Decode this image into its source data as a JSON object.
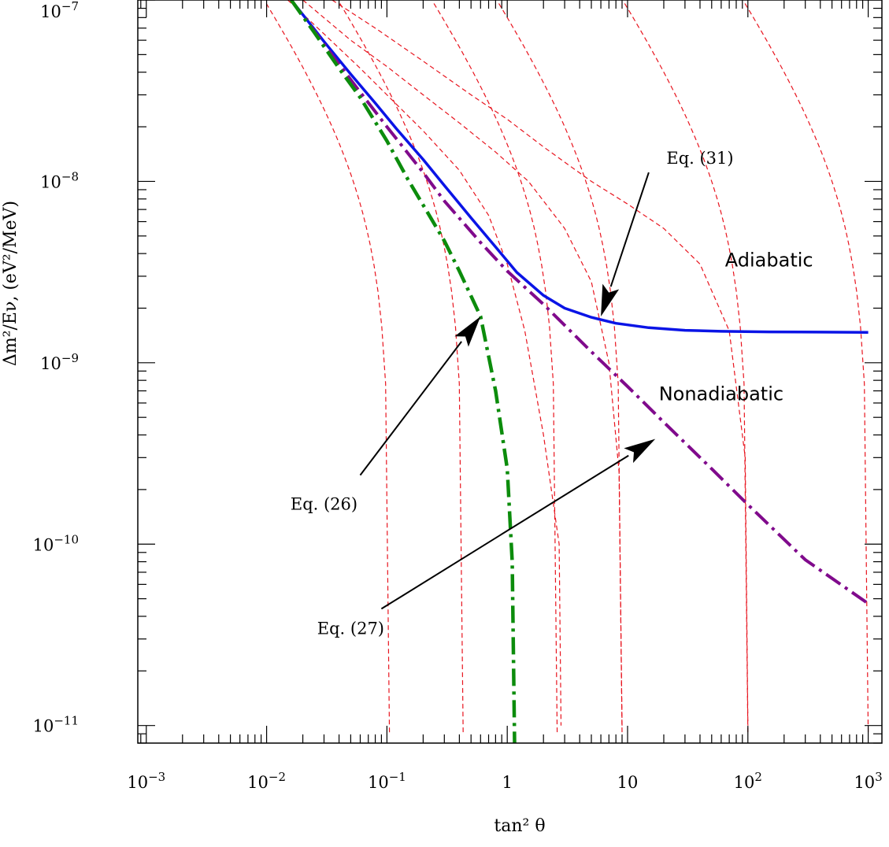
{
  "chart_data": {
    "type": "line",
    "xlabel": "tan² θ",
    "ylabel": "Δm²/Eν, (eV²/MeV)",
    "x_scale": "log",
    "y_scale": "log",
    "xlim": [
      0.00085,
      1300
    ],
    "ylim": [
      8e-12,
      1e-07
    ],
    "x_ticks": [
      {
        "value": 0.001,
        "base": "10",
        "exp": "−3"
      },
      {
        "value": 0.01,
        "base": "10",
        "exp": "−2"
      },
      {
        "value": 0.1,
        "base": "10",
        "exp": "−1"
      },
      {
        "value": 1,
        "base": "1",
        "exp": ""
      },
      {
        "value": 10,
        "base": "10",
        "exp": ""
      },
      {
        "value": 100,
        "base": "10",
        "exp": "2"
      },
      {
        "value": 1000,
        "base": "10",
        "exp": "3"
      }
    ],
    "y_ticks": [
      {
        "value": 1e-07,
        "base": "10",
        "exp": "−7"
      },
      {
        "value": 1e-08,
        "base": "10",
        "exp": "−8"
      },
      {
        "value": 1e-09,
        "base": "10",
        "exp": "−9"
      },
      {
        "value": 1e-10,
        "base": "10",
        "exp": "−10"
      },
      {
        "value": 1e-11,
        "base": "10",
        "exp": "−11"
      }
    ],
    "grid": false,
    "series": [
      {
        "style": "solid",
        "color": "#0a14e6",
        "width": 3.5,
        "x": [
          0.016,
          0.02,
          0.03,
          0.05,
          0.08,
          0.12,
          0.2,
          0.3,
          0.5,
          0.8,
          1.2,
          2,
          3,
          5,
          8,
          15,
          30,
          60,
          150,
          400,
          1000
        ],
        "y": [
          1e-07,
          8.3e-08,
          5.9e-08,
          3.9e-08,
          2.7e-08,
          1.95e-08,
          1.32e-08,
          9.5e-09,
          6.3e-09,
          4.35e-09,
          3.15e-09,
          2.35e-09,
          2e-09,
          1.78e-09,
          1.65e-09,
          1.56e-09,
          1.51e-09,
          1.49e-09,
          1.48e-09,
          1.475e-09,
          1.47e-09
        ]
      },
      {
        "style": "dashdot",
        "color": "#800a8c",
        "width": 4,
        "x": [
          0.016,
          0.03,
          0.06,
          0.1,
          0.2,
          0.3,
          0.6,
          1,
          2,
          5,
          10,
          20,
          50,
          100,
          300,
          1000
        ],
        "y": [
          1e-07,
          5.7e-08,
          3.1e-08,
          2e-08,
          1.12e-08,
          7.8e-09,
          4.6e-09,
          3.2e-09,
          2.1e-09,
          1.15e-09,
          7.4e-10,
          4.7e-10,
          2.6e-10,
          1.65e-10,
          8.2e-11,
          4.7e-11
        ]
      },
      {
        "style": "dashdot",
        "color": "#0c8c0c",
        "width": 4.5,
        "x": [
          0.016,
          0.025,
          0.04,
          0.06,
          0.1,
          0.15,
          0.2,
          0.3,
          0.4,
          0.6,
          0.8,
          1.0,
          1.1,
          1.15
        ],
        "y": [
          1e-07,
          6.6e-08,
          4.2e-08,
          2.9e-08,
          1.67e-08,
          1.02e-08,
          7.4e-09,
          4.7e-09,
          3.2e-09,
          1.8e-09,
          7e-10,
          2.6e-10,
          8e-11,
          8e-12
        ]
      }
    ],
    "contour_asymptotes": [
      0.105,
      0.43,
      2.6,
      9,
      100,
      1000
    ],
    "contour_extra": [
      {
        "x": [
          0.015,
          0.03,
          0.06,
          0.1,
          0.2,
          0.4,
          0.7,
          1.0,
          1.4,
          2,
          2.7,
          2.8
        ],
        "y": [
          1e-07,
          6.5e-08,
          4.2e-08,
          3e-08,
          1.9e-08,
          1.15e-08,
          6.5e-09,
          3.5e-09,
          1.5e-09,
          4e-10,
          1e-10,
          1e-11
        ]
      },
      {
        "x": [
          0.02,
          0.05,
          0.1,
          0.2,
          0.4,
          0.8,
          1.5,
          3,
          5,
          7,
          8.5,
          9
        ],
        "y": [
          1e-07,
          6e-08,
          4.3e-08,
          3e-08,
          2.1e-08,
          1.45e-08,
          1e-08,
          5.5e-09,
          2.8e-09,
          1e-09,
          2.5e-10,
          1e-11
        ]
      },
      {
        "x": [
          0.035,
          0.08,
          0.2,
          0.5,
          1,
          2,
          5,
          10,
          20,
          40,
          70,
          95,
          100
        ],
        "y": [
          1e-07,
          7e-08,
          4.6e-08,
          3e-08,
          2.2e-08,
          1.55e-08,
          1e-08,
          7.5e-09,
          5.5e-09,
          3.5e-09,
          1.5e-09,
          3e-10,
          1e-11
        ]
      }
    ],
    "annotations": [
      {
        "text": "Adiabatic",
        "x": 150,
        "y": 3.4e-09,
        "font": "sans"
      },
      {
        "text": "Nonadiabatic",
        "x": 60,
        "y": 6.2e-10,
        "font": "sans"
      },
      {
        "text": "Eq. (31)",
        "x": 40,
        "y": 1.25e-08,
        "font": "serif"
      },
      {
        "text": "Eq. (26)",
        "x": 0.03,
        "y": 1.55e-10,
        "font": "serif"
      },
      {
        "text": "Eq. (27)",
        "x": 0.05,
        "y": 3.2e-11,
        "font": "serif"
      }
    ],
    "arrows": [
      {
        "from": [
          15,
          1.12e-08
        ],
        "to": [
          6,
          1.8e-09
        ]
      },
      {
        "from": [
          0.06,
          2.4e-10
        ],
        "to": [
          0.6,
          1.8e-09
        ]
      },
      {
        "from": [
          0.09,
          4.4e-11
        ],
        "to": [
          17,
          3.8e-10
        ]
      }
    ]
  }
}
